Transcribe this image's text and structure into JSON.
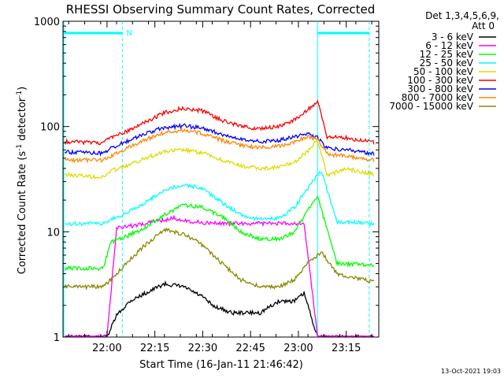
{
  "chart_data": {
    "type": "line",
    "title": "RHESSI Observing Summary Count Rates, Corrected",
    "xlabel": "Start Time (16-Jan-11 21:46:42)",
    "ylabel": "Corrected Count Rate (s",
    "ylabel_sup1": "-1",
    "ylabel_mid": " detector",
    "ylabel_sup2": "-1",
    "ylabel_end": ")",
    "yscale": "log",
    "ylim": [
      1,
      1000
    ],
    "xlim_minutes": [
      21.77,
      23.42
    ],
    "yticks": [
      {
        "label": "1",
        "value": 1
      },
      {
        "label": "10",
        "value": 10
      },
      {
        "label": "100",
        "value": 100
      },
      {
        "label": "1000",
        "value": 1000
      }
    ],
    "xticks": [
      {
        "label": "22:00",
        "value": 22.0
      },
      {
        "label": "22:15",
        "value": 22.25
      },
      {
        "label": "22:30",
        "value": 22.5
      },
      {
        "label": "22:45",
        "value": 22.75
      },
      {
        "label": "23:00",
        "value": 23.0
      },
      {
        "label": "23:15",
        "value": 23.25
      }
    ],
    "legend_header": [
      "Det 1,3,4,5,6,9,",
      "Att 0"
    ],
    "legend_position": "right",
    "series": [
      {
        "name": "3 - 6 keV",
        "color": "#000000",
        "x": [
          21.78,
          21.9,
          22.0,
          22.05,
          22.12,
          22.2,
          22.3,
          22.4,
          22.5,
          22.55,
          22.65,
          22.8,
          22.9,
          22.98,
          23.03,
          23.1,
          23.2,
          23.4
        ],
        "y": [
          1.0,
          1.0,
          1.0,
          1.6,
          2.2,
          2.6,
          3.2,
          3.0,
          2.4,
          2.0,
          1.7,
          1.7,
          2.2,
          2.2,
          2.6,
          1.0,
          1.0,
          1.0
        ]
      },
      {
        "name": "6 - 12 keV",
        "color": "#ff00ff",
        "x": [
          21.78,
          21.95,
          22.0,
          22.05,
          22.15,
          22.25,
          22.35,
          22.45,
          22.55,
          22.65,
          22.75,
          22.85,
          22.95,
          23.03,
          23.1,
          23.2,
          23.4
        ],
        "y": [
          1.0,
          1.0,
          1.0,
          11.0,
          11.5,
          12.5,
          13.5,
          12.5,
          12.0,
          12.0,
          12.0,
          12.0,
          12.0,
          12.0,
          1.0,
          1.0,
          1.0
        ]
      },
      {
        "name": "12 - 25 keV",
        "color": "#00ff00",
        "x": [
          21.78,
          21.98,
          22.02,
          22.1,
          22.2,
          22.3,
          22.4,
          22.5,
          22.6,
          22.7,
          22.8,
          22.9,
          22.98,
          23.03,
          23.1,
          23.2,
          23.4
        ],
        "y": [
          4.5,
          4.5,
          8.0,
          9.0,
          11.0,
          14.5,
          18.0,
          17.0,
          14.0,
          10.0,
          8.5,
          8.5,
          10.0,
          14.0,
          22.0,
          5.0,
          4.8
        ]
      },
      {
        "name": "25 - 50 keV",
        "color": "#00ffff",
        "x": [
          21.78,
          21.98,
          22.02,
          22.1,
          22.2,
          22.3,
          22.4,
          22.5,
          22.6,
          22.7,
          22.8,
          22.9,
          22.98,
          23.05,
          23.12,
          23.2,
          23.4
        ],
        "y": [
          12.0,
          12.0,
          13.0,
          15.0,
          19.0,
          25.0,
          28.0,
          26.0,
          19.0,
          14.5,
          13.0,
          13.5,
          17.0,
          26.0,
          38.0,
          12.5,
          12.0
        ]
      },
      {
        "name": "50 - 100 keV",
        "color": "#dddd00",
        "x": [
          21.78,
          21.98,
          22.02,
          22.1,
          22.2,
          22.3,
          22.4,
          22.5,
          22.6,
          22.7,
          22.8,
          22.9,
          22.98,
          23.05,
          23.1,
          23.15,
          23.25,
          23.4
        ],
        "y": [
          35.0,
          33.0,
          38.0,
          42.0,
          50.0,
          58.0,
          60.0,
          56.0,
          48.0,
          42.0,
          40.0,
          41.0,
          46.0,
          58.0,
          75.0,
          34.0,
          40.0,
          35.0
        ]
      },
      {
        "name": "100 - 300 keV",
        "color": "#ff0000",
        "x": [
          21.78,
          21.98,
          22.02,
          22.1,
          22.2,
          22.3,
          22.4,
          22.5,
          22.6,
          22.7,
          22.8,
          22.9,
          22.98,
          23.05,
          23.1,
          23.15,
          23.25,
          23.4
        ],
        "y": [
          72.0,
          70.0,
          78.0,
          90.0,
          110.0,
          135.0,
          150.0,
          140.0,
          115.0,
          100.0,
          95.0,
          100.0,
          115.0,
          145.0,
          175.0,
          80.0,
          78.0,
          70.0
        ]
      },
      {
        "name": "300 - 800 keV",
        "color": "#0000ff",
        "x": [
          21.78,
          21.98,
          22.02,
          22.1,
          22.2,
          22.3,
          22.4,
          22.5,
          22.6,
          22.7,
          22.8,
          22.9,
          22.98,
          23.05,
          23.1,
          23.15,
          23.25,
          23.4
        ],
        "y": [
          57.0,
          56.0,
          62.0,
          72.0,
          85.0,
          98.0,
          102.0,
          96.0,
          85.0,
          75.0,
          72.0,
          74.0,
          80.0,
          85.0,
          78.0,
          62.0,
          60.0,
          55.0
        ]
      },
      {
        "name": "800 - 7000 keV",
        "color": "#ff8800",
        "x": [
          21.78,
          21.98,
          22.02,
          22.1,
          22.2,
          22.3,
          22.4,
          22.5,
          22.6,
          22.7,
          22.8,
          22.9,
          22.98,
          23.05,
          23.1,
          23.15,
          23.25,
          23.4
        ],
        "y": [
          48.0,
          48.0,
          52.0,
          62.0,
          75.0,
          88.0,
          92.0,
          86.0,
          74.0,
          66.0,
          63.0,
          65.0,
          72.0,
          80.0,
          76.0,
          55.0,
          52.0,
          48.0
        ]
      },
      {
        "name": "7000 - 15000 keV",
        "color": "#888800",
        "x": [
          21.78,
          21.98,
          22.02,
          22.1,
          22.2,
          22.3,
          22.4,
          22.5,
          22.6,
          22.7,
          22.8,
          22.9,
          22.98,
          23.05,
          23.12,
          23.2,
          23.4
        ],
        "y": [
          3.0,
          3.0,
          3.5,
          5.0,
          7.5,
          10.5,
          9.5,
          7.5,
          5.0,
          3.5,
          3.0,
          3.0,
          3.5,
          5.0,
          6.5,
          4.0,
          3.3
        ]
      }
    ],
    "annotations": [
      {
        "text": "N",
        "color": "#00ffff"
      }
    ],
    "timestamp": "13-Oct-2021 19:03"
  }
}
